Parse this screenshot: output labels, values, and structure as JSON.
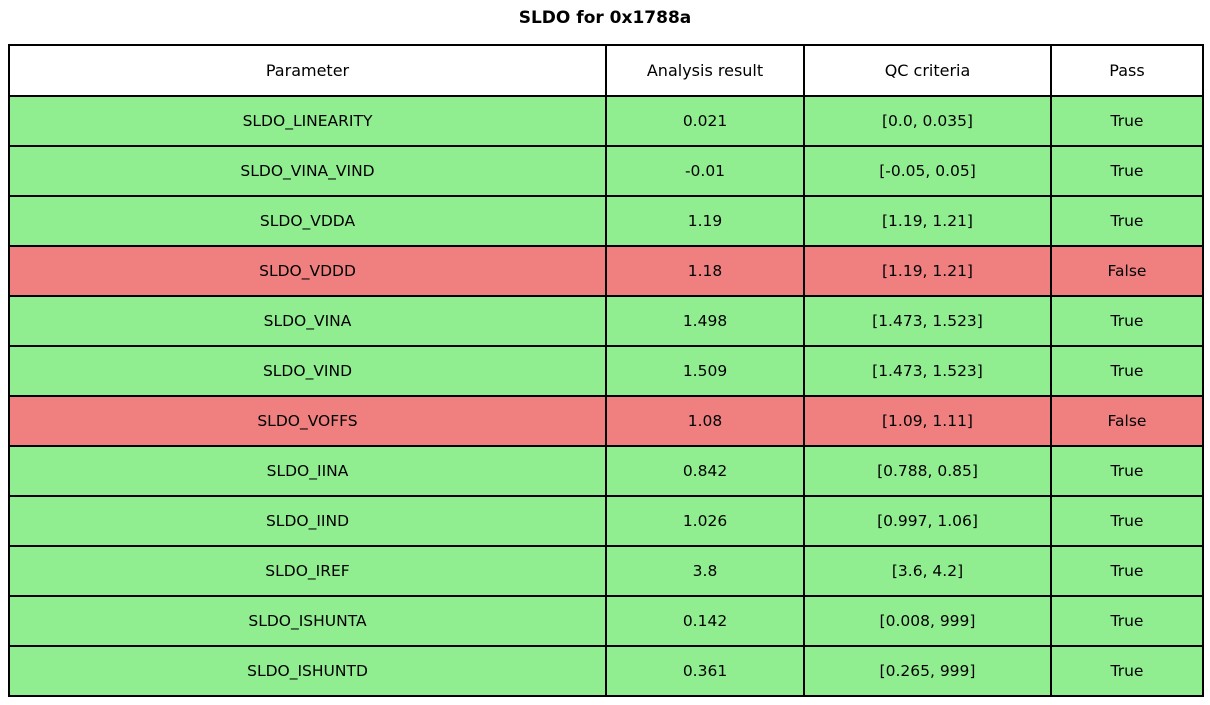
{
  "title": "SLDO for 0x1788a",
  "colors": {
    "pass_row": "#90EE90",
    "fail_row": "#F08080",
    "border": "#000000",
    "header_bg": "#FFFFFF",
    "text": "#000000"
  },
  "table": {
    "headers": [
      "Parameter",
      "Analysis result",
      "QC criteria",
      "Pass"
    ],
    "rows": [
      {
        "parameter": "SLDO_LINEARITY",
        "result": "0.021",
        "criteria": "[0.0, 0.035]",
        "pass": "True"
      },
      {
        "parameter": "SLDO_VINA_VIND",
        "result": "-0.01",
        "criteria": "[-0.05, 0.05]",
        "pass": "True"
      },
      {
        "parameter": "SLDO_VDDA",
        "result": "1.19",
        "criteria": "[1.19, 1.21]",
        "pass": "True"
      },
      {
        "parameter": "SLDO_VDDD",
        "result": "1.18",
        "criteria": "[1.19, 1.21]",
        "pass": "False"
      },
      {
        "parameter": "SLDO_VINA",
        "result": "1.498",
        "criteria": "[1.473, 1.523]",
        "pass": "True"
      },
      {
        "parameter": "SLDO_VIND",
        "result": "1.509",
        "criteria": "[1.473, 1.523]",
        "pass": "True"
      },
      {
        "parameter": "SLDO_VOFFS",
        "result": "1.08",
        "criteria": "[1.09, 1.11]",
        "pass": "False"
      },
      {
        "parameter": "SLDO_IINA",
        "result": "0.842",
        "criteria": "[0.788, 0.85]",
        "pass": "True"
      },
      {
        "parameter": "SLDO_IIND",
        "result": "1.026",
        "criteria": "[0.997, 1.06]",
        "pass": "True"
      },
      {
        "parameter": "SLDO_IREF",
        "result": "3.8",
        "criteria": "[3.6, 4.2]",
        "pass": "True"
      },
      {
        "parameter": "SLDO_ISHUNTA",
        "result": "0.142",
        "criteria": "[0.008, 999]",
        "pass": "True"
      },
      {
        "parameter": "SLDO_ISHUNTD",
        "result": "0.361",
        "criteria": "[0.265, 999]",
        "pass": "True"
      }
    ]
  },
  "chart_data": {
    "type": "table",
    "title": "SLDO for 0x1788a",
    "columns": [
      "Parameter",
      "Analysis result",
      "QC criteria",
      "Pass"
    ],
    "rows": [
      [
        "SLDO_LINEARITY",
        0.021,
        "[0.0, 0.035]",
        true
      ],
      [
        "SLDO_VINA_VIND",
        -0.01,
        "[-0.05, 0.05]",
        true
      ],
      [
        "SLDO_VDDA",
        1.19,
        "[1.19, 1.21]",
        true
      ],
      [
        "SLDO_VDDD",
        1.18,
        "[1.19, 1.21]",
        false
      ],
      [
        "SLDO_VINA",
        1.498,
        "[1.473, 1.523]",
        true
      ],
      [
        "SLDO_VIND",
        1.509,
        "[1.473, 1.523]",
        true
      ],
      [
        "SLDO_VOFFS",
        1.08,
        "[1.09, 1.11]",
        false
      ],
      [
        "SLDO_IINA",
        0.842,
        "[0.788, 0.85]",
        true
      ],
      [
        "SLDO_IIND",
        1.026,
        "[0.997, 1.06]",
        true
      ],
      [
        "SLDO_IREF",
        3.8,
        "[3.6, 4.2]",
        true
      ],
      [
        "SLDO_ISHUNTA",
        0.142,
        "[0.008, 999]",
        true
      ],
      [
        "SLDO_ISHUNTD",
        0.361,
        "[0.265, 999]",
        true
      ]
    ],
    "row_colors_legend": {
      "green": "pass",
      "red": "fail"
    }
  }
}
